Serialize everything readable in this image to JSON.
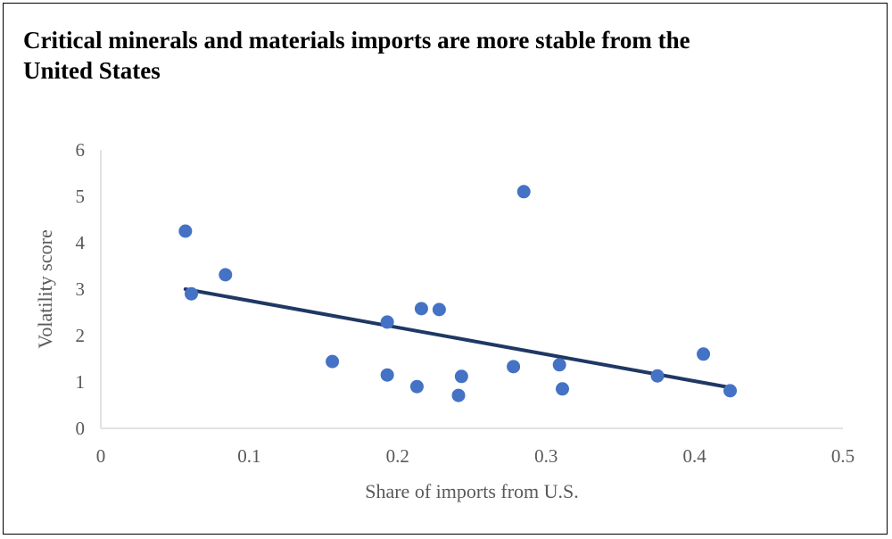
{
  "chart_data": {
    "type": "scatter",
    "title": "Critical minerals and materials imports are more stable from the United States",
    "xlabel": "Share of imports from U.S.",
    "ylabel": "Volatility score",
    "xlim": [
      0,
      0.5
    ],
    "ylim": [
      0,
      6
    ],
    "xticks": [
      "0",
      "0.1",
      "0.2",
      "0.3",
      "0.4",
      "0.5"
    ],
    "yticks": [
      "0",
      "1",
      "2",
      "3",
      "4",
      "5",
      "6"
    ],
    "grid": false,
    "legend": "none",
    "marker_color": "#4472C4",
    "trendline_color": "#1F3864",
    "points": [
      [
        0.057,
        4.25
      ],
      [
        0.061,
        2.9
      ],
      [
        0.084,
        3.31
      ],
      [
        0.156,
        1.44
      ],
      [
        0.193,
        2.29
      ],
      [
        0.193,
        1.15
      ],
      [
        0.213,
        0.9
      ],
      [
        0.216,
        2.58
      ],
      [
        0.228,
        2.56
      ],
      [
        0.241,
        0.71
      ],
      [
        0.243,
        1.12
      ],
      [
        0.278,
        1.33
      ],
      [
        0.285,
        5.1
      ],
      [
        0.309,
        1.37
      ],
      [
        0.311,
        0.85
      ],
      [
        0.375,
        1.13
      ],
      [
        0.406,
        1.6
      ],
      [
        0.424,
        0.81
      ]
    ],
    "trendline": {
      "type": "linear",
      "from": [
        0.057,
        3.0
      ],
      "to": [
        0.424,
        0.88
      ]
    }
  }
}
